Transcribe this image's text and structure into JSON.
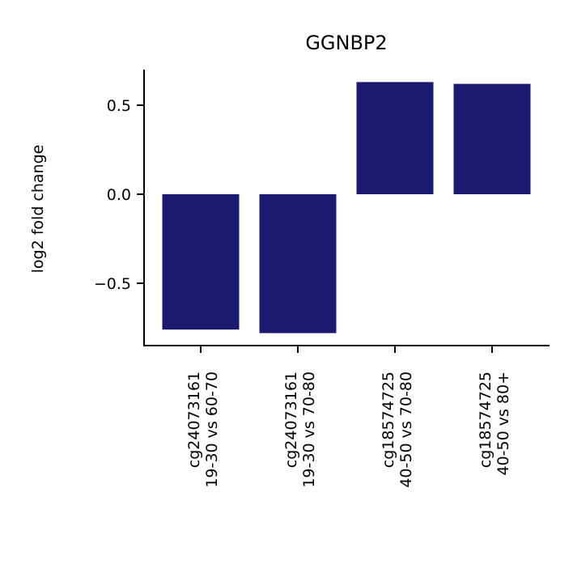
{
  "chart_data": {
    "type": "bar",
    "title": "GGNBP2",
    "xlabel": "",
    "ylabel": "log2 fold change",
    "categories": [
      [
        "cg24073161",
        "19-30 vs 60-70"
      ],
      [
        "cg24073161",
        "19-30 vs 70-80"
      ],
      [
        "cg18574725",
        "40-50 vs 70-80"
      ],
      [
        "cg18574725",
        "40-50 vs 80+"
      ]
    ],
    "values": [
      -0.76,
      -0.78,
      0.63,
      0.62
    ],
    "ylim": [
      -0.85,
      0.7
    ],
    "yticks": [
      {
        "value": 0.5,
        "label": "0.5"
      },
      {
        "value": 0.0,
        "label": "0.0"
      },
      {
        "value": -0.5,
        "label": "−0.5"
      }
    ],
    "bar_color": "#191970",
    "grid": false,
    "legend": "none"
  }
}
